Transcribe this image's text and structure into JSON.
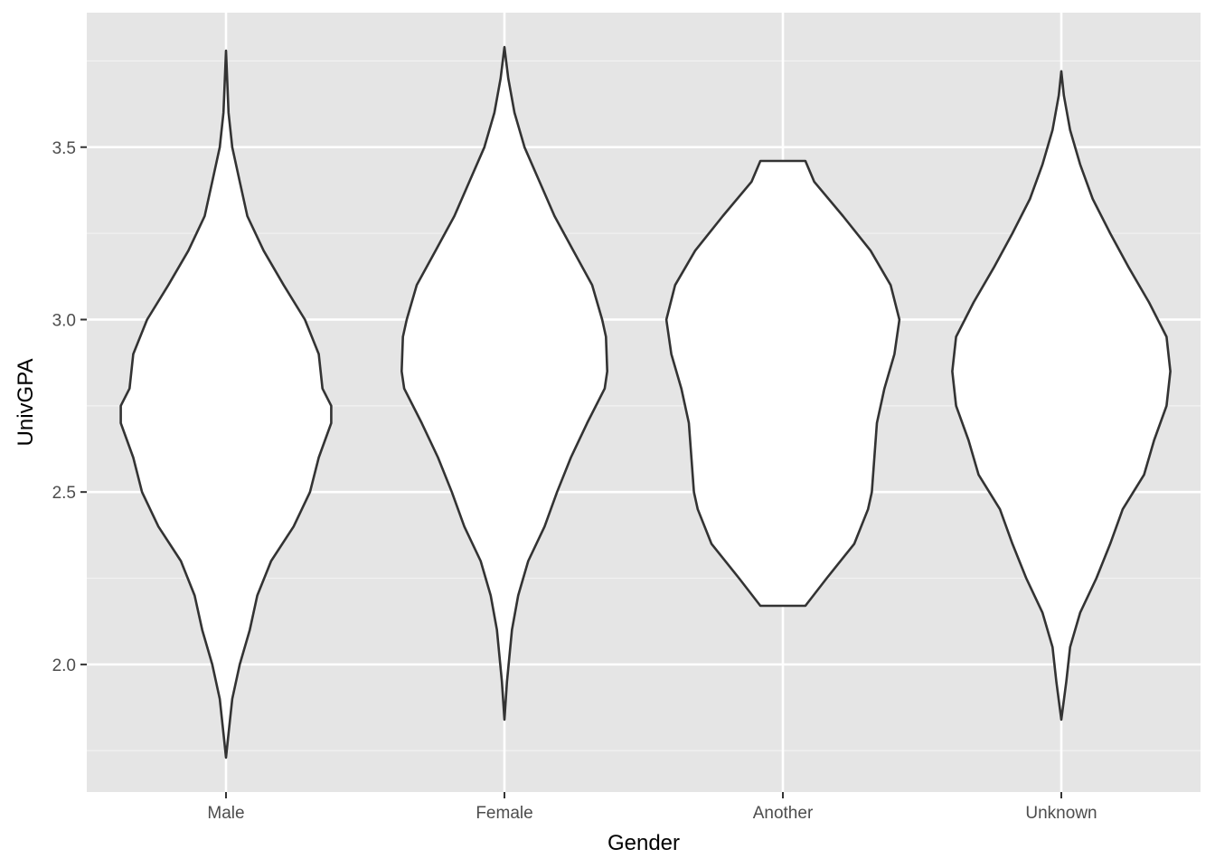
{
  "chart_data": {
    "type": "violin",
    "title": "",
    "xlabel": "Gender",
    "ylabel": "UnivGPA",
    "categories": [
      "Male",
      "Female",
      "Another",
      "Unknown"
    ],
    "ylim": [
      1.63,
      3.89
    ],
    "yticks": [
      2.0,
      2.5,
      3.0,
      3.5
    ],
    "ytick_labels": [
      "2.0",
      "2.5",
      "3.0",
      "3.5"
    ],
    "grid": true,
    "colors": {
      "panel_background": "#E5E5E5",
      "grid_major": "#FFFFFF",
      "grid_minor": "#F2F2F2",
      "violin_fill": "#FFFFFF",
      "violin_outline": "#333333"
    },
    "violins": [
      {
        "category": "Male",
        "range": [
          1.73,
          3.78
        ],
        "density": [
          [
            1.73,
            0.0
          ],
          [
            1.8,
            0.02
          ],
          [
            1.9,
            0.05
          ],
          [
            2.0,
            0.11
          ],
          [
            2.1,
            0.19
          ],
          [
            2.2,
            0.25
          ],
          [
            2.3,
            0.36
          ],
          [
            2.4,
            0.54
          ],
          [
            2.5,
            0.67
          ],
          [
            2.6,
            0.74
          ],
          [
            2.7,
            0.84
          ],
          [
            2.75,
            0.84
          ],
          [
            2.8,
            0.77
          ],
          [
            2.9,
            0.74
          ],
          [
            3.0,
            0.63
          ],
          [
            3.1,
            0.46
          ],
          [
            3.2,
            0.3
          ],
          [
            3.3,
            0.17
          ],
          [
            3.4,
            0.11
          ],
          [
            3.5,
            0.05
          ],
          [
            3.6,
            0.02
          ],
          [
            3.78,
            0.0
          ]
        ]
      },
      {
        "category": "Female",
        "range": [
          1.84,
          3.79
        ],
        "density": [
          [
            1.84,
            0.0
          ],
          [
            1.95,
            0.02
          ],
          [
            2.1,
            0.06
          ],
          [
            2.2,
            0.11
          ],
          [
            2.3,
            0.19
          ],
          [
            2.4,
            0.32
          ],
          [
            2.5,
            0.42
          ],
          [
            2.6,
            0.53
          ],
          [
            2.7,
            0.66
          ],
          [
            2.8,
            0.8
          ],
          [
            2.85,
            0.82
          ],
          [
            2.95,
            0.81
          ],
          [
            3.0,
            0.78
          ],
          [
            3.1,
            0.7
          ],
          [
            3.2,
            0.55
          ],
          [
            3.3,
            0.4
          ],
          [
            3.4,
            0.28
          ],
          [
            3.5,
            0.16
          ],
          [
            3.6,
            0.08
          ],
          [
            3.7,
            0.03
          ],
          [
            3.79,
            0.0
          ]
        ]
      },
      {
        "category": "Another",
        "range": [
          2.17,
          3.46
        ],
        "density": [
          [
            2.17,
            0.18
          ],
          [
            2.25,
            0.35
          ],
          [
            2.35,
            0.57
          ],
          [
            2.45,
            0.68
          ],
          [
            2.5,
            0.71
          ],
          [
            2.6,
            0.73
          ],
          [
            2.7,
            0.75
          ],
          [
            2.8,
            0.81
          ],
          [
            2.9,
            0.89
          ],
          [
            3.0,
            0.93
          ],
          [
            3.1,
            0.86
          ],
          [
            3.2,
            0.7
          ],
          [
            3.3,
            0.48
          ],
          [
            3.4,
            0.25
          ],
          [
            3.46,
            0.18
          ]
        ]
      },
      {
        "category": "Unknown",
        "range": [
          1.84,
          3.72
        ],
        "density": [
          [
            1.84,
            0.0
          ],
          [
            1.95,
            0.04
          ],
          [
            2.05,
            0.07
          ],
          [
            2.15,
            0.15
          ],
          [
            2.25,
            0.28
          ],
          [
            2.35,
            0.39
          ],
          [
            2.45,
            0.49
          ],
          [
            2.55,
            0.66
          ],
          [
            2.65,
            0.74
          ],
          [
            2.75,
            0.84
          ],
          [
            2.85,
            0.87
          ],
          [
            2.95,
            0.84
          ],
          [
            3.05,
            0.7
          ],
          [
            3.15,
            0.54
          ],
          [
            3.25,
            0.39
          ],
          [
            3.35,
            0.25
          ],
          [
            3.45,
            0.15
          ],
          [
            3.55,
            0.07
          ],
          [
            3.65,
            0.02
          ],
          [
            3.72,
            0.0
          ]
        ]
      }
    ]
  }
}
